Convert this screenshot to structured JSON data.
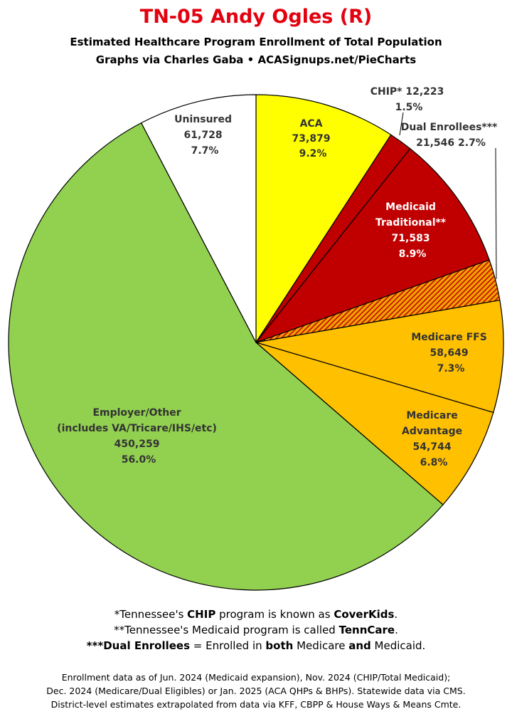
{
  "header": {
    "title": "TN-05 Andy Ogles (R)",
    "subtitle_line1": "Estimated Healthcare Program Enrollment of Total Population",
    "subtitle_line2": "Graphs via Charles Gaba  •  ACASignups.net/PieCharts"
  },
  "chart_data": {
    "type": "pie",
    "title": "TN-05 Andy Ogles (R)",
    "slices": [
      {
        "label": "ACA",
        "value": 73879,
        "percent": "9.2%",
        "value_text": "73,879",
        "color": "#ffff00",
        "text_color": "#333333",
        "hatched": false
      },
      {
        "label": "CHIP* 12,223",
        "value": 12223,
        "percent": "1.5%",
        "value_text": "12,223",
        "color": "#c00000",
        "text_color": "#333333",
        "hatched": false
      },
      {
        "label": "Medicaid Traditional**",
        "value": 71583,
        "percent": "8.9%",
        "value_text": "71,583",
        "color": "#c00000",
        "text_color": "#ffffff",
        "hatched": false
      },
      {
        "label": "Dual Enrollees***",
        "value": 21546,
        "percent": "2.7%",
        "value_text": "21,546",
        "color": "#c00000",
        "text_color": "#333333",
        "hatched": true
      },
      {
        "label": "Medicare FFS",
        "value": 58649,
        "percent": "7.3%",
        "value_text": "58,649",
        "color": "#ffc000",
        "text_color": "#333333",
        "hatched": false
      },
      {
        "label": "Medicare Advantage",
        "value": 54744,
        "percent": "6.8%",
        "value_text": "54,744",
        "color": "#ffc000",
        "text_color": "#333333",
        "hatched": false
      },
      {
        "label": "Employer/Other (includes VA/Tricare/IHS/etc)",
        "value": 450259,
        "percent": "56.0%",
        "value_text": "450,259",
        "color": "#92d050",
        "text_color": "#333333",
        "hatched": false
      },
      {
        "label": "Uninsured",
        "value": 61728,
        "percent": "7.7%",
        "value_text": "61,728",
        "color": "#ffffff",
        "text_color": "#333333",
        "hatched": false
      }
    ],
    "labels": {
      "aca": [
        "ACA",
        "73,879",
        "9.2%"
      ],
      "chip": [
        "CHIP* 12,223",
        "1.5%"
      ],
      "dual": [
        "Dual Enrollees***",
        "21,546 2.7%"
      ],
      "medicaid": [
        "Medicaid",
        "Traditional**",
        "71,583",
        "8.9%"
      ],
      "ffs": [
        "Medicare FFS",
        "58,649",
        "7.3%"
      ],
      "ma": [
        "Medicare",
        "Advantage",
        "54,744",
        "6.8%"
      ],
      "employer": [
        "Employer/Other",
        "(includes VA/Tricare/IHS/etc)",
        "450,259",
        "56.0%"
      ],
      "uninsured": [
        "Uninsured",
        "61,728",
        "7.7%"
      ]
    }
  },
  "notes": {
    "line1_pre": "*Tennessee's ",
    "line1_b1": "CHIP",
    "line1_mid": " program is known as ",
    "line1_b2": "CoverKids",
    "line1_post": ".",
    "line2_pre": "**Tennessee's Medicaid program is called ",
    "line2_b1": "TennCare",
    "line2_post": ".",
    "line3_b1": "***Dual Enrollees",
    "line3_mid1": " = Enrolled in ",
    "line3_b2": "both",
    "line3_mid2": " Medicare ",
    "line3_b3": "and",
    "line3_post": " Medicaid."
  },
  "footer": {
    "line1": "Enrollment data as of Jun. 2024 (Medicaid expansion), Nov. 2024 (CHIP/Total Medicaid);",
    "line2": "Dec. 2024 (Medicare/Dual Eligibles) or Jan. 2025 (ACA QHPs & BHPs). Statewide data via CMS.",
    "line3": "District-level estimates extrapolated from data via KFF, CBPP & House Ways & Means Cmte."
  }
}
